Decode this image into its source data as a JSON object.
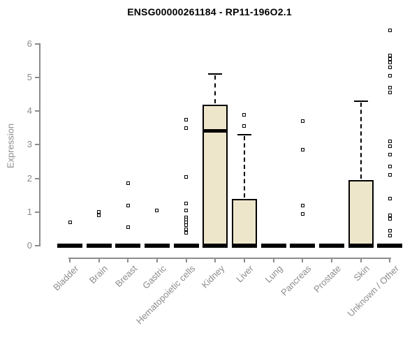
{
  "colors": {
    "background": "#FFFFFF",
    "title": "#000000",
    "axis": "#8C8C8C",
    "tick_label": "#8C8C8C",
    "box_fill": "#EDE6CB",
    "box_border": "#000000",
    "whisker": "#000000",
    "outlier_border": "#000000",
    "outlier_fill": "#FFFFFF"
  },
  "chart_data": {
    "type": "box",
    "title": "ENSG00000261184 - RP11-196O2.1",
    "xlabel": "",
    "ylabel": "Expression",
    "ylim": [
      0,
      6.5
    ],
    "yticks": [
      0,
      1,
      2,
      3,
      4,
      5,
      6
    ],
    "grid": false,
    "legend": "none",
    "categories": [
      "Bladder",
      "Brain",
      "Breast",
      "Gastric",
      "Hematopoietic cells",
      "Kidney",
      "Liver",
      "Lung",
      "Pancreas",
      "Prostate",
      "Skin",
      "Unknown / Other"
    ],
    "boxes": [
      {
        "category": "Bladder",
        "q1": 0,
        "median": 0,
        "q3": 0,
        "whisker_low": 0,
        "whisker_high": 0,
        "outliers": [
          0.7
        ]
      },
      {
        "category": "Brain",
        "q1": 0,
        "median": 0,
        "q3": 0,
        "whisker_low": 0,
        "whisker_high": 0,
        "outliers": [
          1.0,
          0.9
        ]
      },
      {
        "category": "Breast",
        "q1": 0,
        "median": 0,
        "q3": 0,
        "whisker_low": 0,
        "whisker_high": 0,
        "outliers": [
          1.85,
          1.2,
          0.55
        ]
      },
      {
        "category": "Gastric",
        "q1": 0,
        "median": 0,
        "q3": 0,
        "whisker_low": 0,
        "whisker_high": 0,
        "outliers": [
          1.05
        ]
      },
      {
        "category": "Hematopoietic cells",
        "q1": 0,
        "median": 0,
        "q3": 0,
        "whisker_low": 0,
        "whisker_high": 0,
        "outliers": [
          3.75,
          3.5,
          2.05,
          1.25,
          1.05,
          0.85,
          0.78,
          0.7,
          0.62,
          0.48,
          0.38
        ]
      },
      {
        "category": "Kidney",
        "q1": 0,
        "median": 3.4,
        "q3": 4.2,
        "whisker_low": 0,
        "whisker_high": 5.1,
        "outliers": []
      },
      {
        "category": "Liver",
        "q1": 0,
        "median": 0,
        "q3": 1.4,
        "whisker_low": 0,
        "whisker_high": 3.3,
        "outliers": [
          3.9,
          3.55
        ]
      },
      {
        "category": "Lung",
        "q1": 0,
        "median": 0,
        "q3": 0,
        "whisker_low": 0,
        "whisker_high": 0,
        "outliers": []
      },
      {
        "category": "Pancreas",
        "q1": 0,
        "median": 0,
        "q3": 0,
        "whisker_low": 0,
        "whisker_high": 0,
        "outliers": [
          3.7,
          2.85,
          1.2,
          0.95
        ]
      },
      {
        "category": "Prostate",
        "q1": 0,
        "median": 0,
        "q3": 0,
        "whisker_low": 0,
        "whisker_high": 0,
        "outliers": []
      },
      {
        "category": "Skin",
        "q1": 0,
        "median": 0,
        "q3": 1.95,
        "whisker_low": 0,
        "whisker_high": 4.3,
        "outliers": []
      },
      {
        "category": "Unknown / Other",
        "q1": 0,
        "median": 0,
        "q3": 0,
        "whisker_low": 0,
        "whisker_high": 0,
        "outliers": [
          6.4,
          5.65,
          5.55,
          5.45,
          5.3,
          5.05,
          4.7,
          4.55,
          3.1,
          2.95,
          2.7,
          2.35,
          2.1,
          1.4,
          0.9,
          0.8,
          0.45,
          0.3
        ]
      }
    ]
  }
}
